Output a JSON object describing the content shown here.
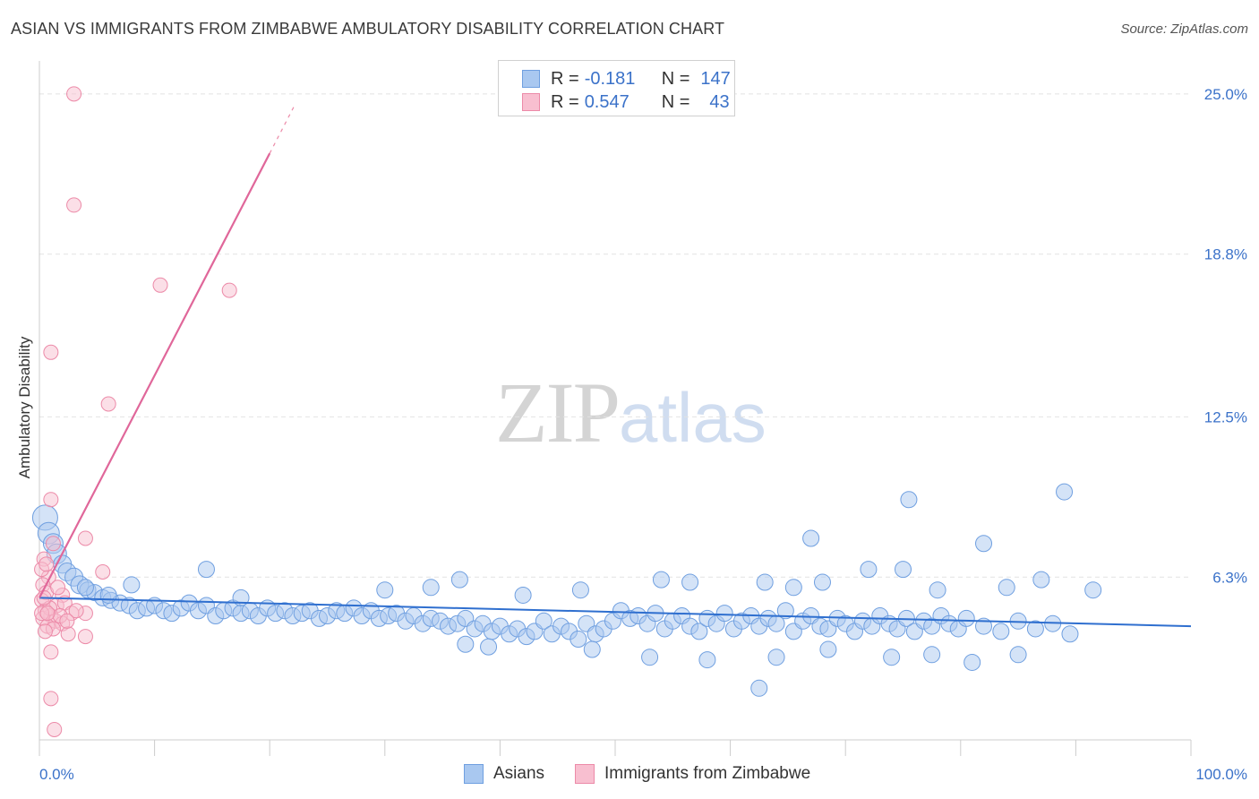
{
  "title": "ASIAN VS IMMIGRANTS FROM ZIMBABWE AMBULATORY DISABILITY CORRELATION CHART",
  "source": "Source: ZipAtlas.com",
  "watermark": {
    "zip": "ZIP",
    "atlas": "atlas"
  },
  "legend": {
    "rows": [
      {
        "r_label": "R =",
        "r_value": "-0.181",
        "n_label": "N =",
        "n_value": "147",
        "color": "#a9c8f0",
        "border": "#6f9fe0"
      },
      {
        "r_label": "R =",
        "r_value": "0.547",
        "n_label": "N =",
        "n_value": "43",
        "color": "#f8bfd0",
        "border": "#ec8aa8"
      }
    ]
  },
  "bottom_legend": [
    {
      "label": "Asians",
      "color": "#a9c8f0",
      "border": "#6f9fe0"
    },
    {
      "label": "Immigrants from Zimbabwe",
      "color": "#f8bfd0",
      "border": "#ec8aa8"
    }
  ],
  "chart_data": {
    "type": "scatter",
    "title": "ASIAN VS IMMIGRANTS FROM ZIMBABWE AMBULATORY DISABILITY CORRELATION CHART",
    "xlabel": "",
    "ylabel": "Ambulatory Disability",
    "xlim": [
      0,
      100
    ],
    "ylim": [
      0,
      26
    ],
    "x_tick_labels": [
      "0.0%",
      "100.0%"
    ],
    "y_ticks": [
      6.3,
      12.5,
      18.8,
      25.0
    ],
    "y_tick_labels": [
      "6.3%",
      "12.5%",
      "18.8%",
      "25.0%"
    ],
    "grid": true,
    "legend_position": "top-center",
    "colors": {
      "asians_fill": "#a9c8f0",
      "asians_stroke": "#6f9fe0",
      "asians_line": "#2f6fcf",
      "zim_fill": "#f8bfd0",
      "zim_stroke": "#ec8aa8",
      "zim_line": "#e0679a",
      "tick_label": "#3b72c9"
    },
    "series": [
      {
        "name": "Asians",
        "trend": {
          "x0": 0,
          "y0": 5.5,
          "x1": 100,
          "y1": 4.4
        },
        "points": [
          [
            0.5,
            8.6,
            14
          ],
          [
            0.8,
            8.0,
            12
          ],
          [
            1.2,
            7.6,
            11
          ],
          [
            1.5,
            7.2,
            11
          ],
          [
            2.0,
            6.8,
            10
          ],
          [
            2.4,
            6.5,
            10
          ],
          [
            3.0,
            6.3,
            10
          ],
          [
            3.5,
            6.0,
            10
          ],
          [
            4.2,
            5.8,
            9
          ],
          [
            4.8,
            5.7,
            9
          ],
          [
            5.5,
            5.5,
            9
          ],
          [
            6.2,
            5.4,
            9
          ],
          [
            7.0,
            5.3,
            9
          ],
          [
            7.8,
            5.2,
            9
          ],
          [
            8.5,
            5.0,
            9
          ],
          [
            9.3,
            5.1,
            9
          ],
          [
            10.0,
            5.2,
            9
          ],
          [
            10.8,
            5.0,
            9
          ],
          [
            11.5,
            4.9,
            9
          ],
          [
            12.3,
            5.1,
            9
          ],
          [
            13.0,
            5.3,
            9
          ],
          [
            13.8,
            5.0,
            9
          ],
          [
            14.5,
            5.2,
            9
          ],
          [
            15.3,
            4.8,
            9
          ],
          [
            16.0,
            5.0,
            9
          ],
          [
            16.8,
            5.1,
            9
          ],
          [
            17.5,
            4.9,
            9
          ],
          [
            18.3,
            5.0,
            9
          ],
          [
            19.0,
            4.8,
            9
          ],
          [
            19.8,
            5.1,
            9
          ],
          [
            20.5,
            4.9,
            9
          ],
          [
            21.3,
            5.0,
            9
          ],
          [
            22.0,
            4.8,
            9
          ],
          [
            22.8,
            4.9,
            9
          ],
          [
            23.5,
            5.0,
            9
          ],
          [
            24.3,
            4.7,
            9
          ],
          [
            25.0,
            4.8,
            9
          ],
          [
            25.8,
            5.0,
            9
          ],
          [
            26.5,
            4.9,
            9
          ],
          [
            27.3,
            5.1,
            9
          ],
          [
            28.0,
            4.8,
            9
          ],
          [
            28.8,
            5.0,
            9
          ],
          [
            29.5,
            4.7,
            9
          ],
          [
            30.3,
            4.8,
            9
          ],
          [
            31.0,
            4.9,
            9
          ],
          [
            31.8,
            4.6,
            9
          ],
          [
            32.5,
            4.8,
            9
          ],
          [
            33.3,
            4.5,
            9
          ],
          [
            34.0,
            4.7,
            9
          ],
          [
            34.8,
            4.6,
            9
          ],
          [
            35.5,
            4.4,
            9
          ],
          [
            36.3,
            4.5,
            9
          ],
          [
            37.0,
            4.7,
            9
          ],
          [
            37.8,
            4.3,
            9
          ],
          [
            38.5,
            4.5,
            9
          ],
          [
            39.3,
            4.2,
            9
          ],
          [
            40.0,
            4.4,
            9
          ],
          [
            40.8,
            4.1,
            9
          ],
          [
            41.5,
            4.3,
            9
          ],
          [
            42.3,
            4.0,
            9
          ],
          [
            43.0,
            4.2,
            9
          ],
          [
            43.8,
            4.6,
            9
          ],
          [
            44.5,
            4.1,
            9
          ],
          [
            45.3,
            4.4,
            9
          ],
          [
            46.0,
            4.2,
            9
          ],
          [
            46.8,
            3.9,
            9
          ],
          [
            47.5,
            4.5,
            9
          ],
          [
            48.3,
            4.1,
            9
          ],
          [
            49.0,
            4.3,
            9
          ],
          [
            49.8,
            4.6,
            9
          ],
          [
            50.5,
            5.0,
            9
          ],
          [
            51.3,
            4.7,
            9
          ],
          [
            52.0,
            4.8,
            9
          ],
          [
            52.8,
            4.5,
            9
          ],
          [
            53.5,
            4.9,
            9
          ],
          [
            54.3,
            4.3,
            9
          ],
          [
            55.0,
            4.6,
            9
          ],
          [
            55.8,
            4.8,
            9
          ],
          [
            56.5,
            4.4,
            9
          ],
          [
            57.3,
            4.2,
            9
          ],
          [
            58.0,
            4.7,
            9
          ],
          [
            58.8,
            4.5,
            9
          ],
          [
            59.5,
            4.9,
            9
          ],
          [
            60.3,
            4.3,
            9
          ],
          [
            61.0,
            4.6,
            9
          ],
          [
            61.8,
            4.8,
            9
          ],
          [
            62.5,
            4.4,
            9
          ],
          [
            63.3,
            4.7,
            9
          ],
          [
            64.0,
            4.5,
            9
          ],
          [
            64.8,
            5.0,
            9
          ],
          [
            65.5,
            4.2,
            9
          ],
          [
            66.3,
            4.6,
            9
          ],
          [
            67.0,
            4.8,
            9
          ],
          [
            67.8,
            4.4,
            9
          ],
          [
            68.5,
            4.3,
            9
          ],
          [
            69.3,
            4.7,
            9
          ],
          [
            70.0,
            4.5,
            9
          ],
          [
            70.8,
            4.2,
            9
          ],
          [
            71.5,
            4.6,
            9
          ],
          [
            72.3,
            4.4,
            9
          ],
          [
            73.0,
            4.8,
            9
          ],
          [
            73.8,
            4.5,
            9
          ],
          [
            74.5,
            4.3,
            9
          ],
          [
            75.3,
            4.7,
            9
          ],
          [
            76.0,
            4.2,
            9
          ],
          [
            76.8,
            4.6,
            9
          ],
          [
            77.5,
            4.4,
            9
          ],
          [
            78.3,
            4.8,
            9
          ],
          [
            79.0,
            4.5,
            9
          ],
          [
            79.8,
            4.3,
            9
          ],
          [
            80.5,
            4.7,
            9
          ],
          [
            82.0,
            4.4,
            9
          ],
          [
            83.5,
            4.2,
            9
          ],
          [
            85.0,
            4.6,
            9
          ],
          [
            86.5,
            4.3,
            9
          ],
          [
            88.0,
            4.5,
            9
          ],
          [
            89.5,
            4.1,
            9
          ],
          [
            4.0,
            5.9,
            9
          ],
          [
            6.0,
            5.6,
            9
          ],
          [
            8.0,
            6.0,
            9
          ],
          [
            14.5,
            6.6,
            9
          ],
          [
            17.5,
            5.5,
            9
          ],
          [
            30.0,
            5.8,
            9
          ],
          [
            34.0,
            5.9,
            9
          ],
          [
            36.5,
            6.2,
            9
          ],
          [
            42.0,
            5.6,
            9
          ],
          [
            47.0,
            5.8,
            9
          ],
          [
            54.0,
            6.2,
            9
          ],
          [
            56.5,
            6.1,
            9
          ],
          [
            63.0,
            6.1,
            9
          ],
          [
            65.5,
            5.9,
            9
          ],
          [
            68.0,
            6.1,
            9
          ],
          [
            72.0,
            6.6,
            9
          ],
          [
            75.0,
            6.6,
            9
          ],
          [
            78.0,
            5.8,
            9
          ],
          [
            84.0,
            5.9,
            9
          ],
          [
            87.0,
            6.2,
            9
          ],
          [
            91.5,
            5.8,
            9
          ],
          [
            67.0,
            7.8,
            9
          ],
          [
            82.0,
            7.6,
            9
          ],
          [
            75.5,
            9.3,
            9
          ],
          [
            89.0,
            9.6,
            9
          ],
          [
            53.0,
            3.2,
            9
          ],
          [
            58.0,
            3.1,
            9
          ],
          [
            64.0,
            3.2,
            9
          ],
          [
            68.5,
            3.5,
            9
          ],
          [
            74.0,
            3.2,
            9
          ],
          [
            77.5,
            3.3,
            9
          ],
          [
            81.0,
            3.0,
            9
          ],
          [
            85.0,
            3.3,
            9
          ],
          [
            62.5,
            2.0,
            9
          ],
          [
            48.0,
            3.5,
            9
          ],
          [
            37.0,
            3.7,
            9
          ],
          [
            39.0,
            3.6,
            9
          ]
        ]
      },
      {
        "name": "Immigrants from Zimbabwe",
        "trend": {
          "x0": 0,
          "y0": 5.5,
          "x1": 20,
          "y1": 22.7
        },
        "points": [
          [
            3.0,
            25.0,
            8
          ],
          [
            3.0,
            20.7,
            8
          ],
          [
            10.5,
            17.6,
            8
          ],
          [
            16.5,
            17.4,
            8
          ],
          [
            1.0,
            15.0,
            8
          ],
          [
            6.0,
            13.0,
            8
          ],
          [
            1.0,
            9.3,
            8
          ],
          [
            4.0,
            7.8,
            8
          ],
          [
            1.2,
            7.6,
            8
          ],
          [
            0.4,
            7.0,
            8
          ],
          [
            5.5,
            6.5,
            8
          ],
          [
            0.8,
            6.3,
            8
          ],
          [
            0.3,
            6.0,
            8
          ],
          [
            0.6,
            5.7,
            8
          ],
          [
            2.0,
            5.6,
            8
          ],
          [
            0.2,
            5.4,
            8
          ],
          [
            1.5,
            5.2,
            8
          ],
          [
            2.2,
            5.3,
            8
          ],
          [
            4.0,
            4.9,
            8
          ],
          [
            0.5,
            5.0,
            8
          ],
          [
            1.0,
            4.8,
            8
          ],
          [
            0.3,
            4.7,
            8
          ],
          [
            1.4,
            4.6,
            8
          ],
          [
            2.0,
            4.5,
            8
          ],
          [
            0.7,
            4.4,
            8
          ],
          [
            1.2,
            4.3,
            8
          ],
          [
            2.5,
            4.1,
            8
          ],
          [
            4.0,
            4.0,
            8
          ],
          [
            0.5,
            4.2,
            8
          ],
          [
            1.0,
            3.4,
            8
          ],
          [
            1.0,
            1.6,
            8
          ],
          [
            1.3,
            0.4,
            8
          ],
          [
            0.2,
            6.6,
            8
          ],
          [
            0.6,
            6.8,
            8
          ],
          [
            1.6,
            5.9,
            8
          ],
          [
            0.9,
            5.1,
            8
          ],
          [
            2.8,
            4.9,
            8
          ],
          [
            0.4,
            5.5,
            8
          ],
          [
            1.8,
            4.8,
            8
          ],
          [
            3.2,
            5.0,
            8
          ],
          [
            0.2,
            4.9,
            8
          ],
          [
            2.4,
            4.6,
            8
          ],
          [
            0.7,
            4.9,
            8
          ]
        ]
      }
    ]
  }
}
